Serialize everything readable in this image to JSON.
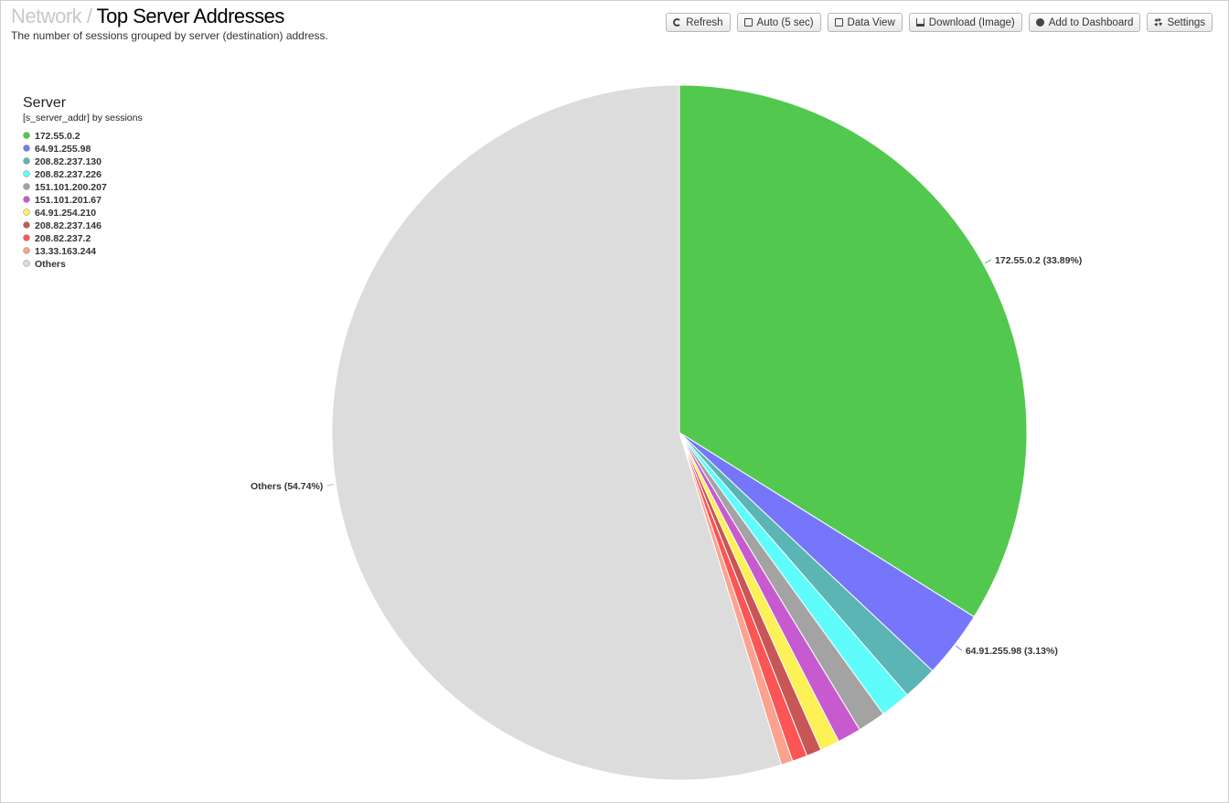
{
  "header": {
    "breadcrumb": "Network",
    "separator": "/",
    "title": "Top Server Addresses",
    "subtitle": "The number of sessions grouped by server (destination) address."
  },
  "toolbar": [
    "Refresh",
    "Auto (5 sec)",
    "Data View",
    "Download (Image)",
    "Add to Dashboard",
    "Settings"
  ],
  "chart_data": {
    "type": "pie",
    "legend_title": "Server",
    "legend_subtitle": "[s_server_addr] by sessions",
    "categories": [
      "172.55.0.2",
      "64.91.255.98",
      "208.82.237.130",
      "208.82.237.226",
      "151.101.200.207",
      "151.101.201.67",
      "64.91.254.210",
      "208.82.237.146",
      "208.82.237.2",
      "13.33.163.244",
      "Others"
    ],
    "values": [
      33.89,
      3.13,
      1.6,
      1.4,
      1.3,
      1.1,
      0.9,
      0.7,
      0.7,
      0.54,
      54.74
    ],
    "value_labels": [
      "172.55.0.2 (33.89%)",
      "64.91.255.98 (3.13%)",
      null,
      null,
      null,
      null,
      null,
      null,
      null,
      null,
      "Others (54.74%)"
    ],
    "colors": [
      "#52c84f",
      "#7676fb",
      "#5cb5b5",
      "#5ffcfc",
      "#a3a3a3",
      "#c85ad0",
      "#fcf155",
      "#c85656",
      "#fc5555",
      "#fca28e",
      "#dcdcdc"
    ]
  }
}
